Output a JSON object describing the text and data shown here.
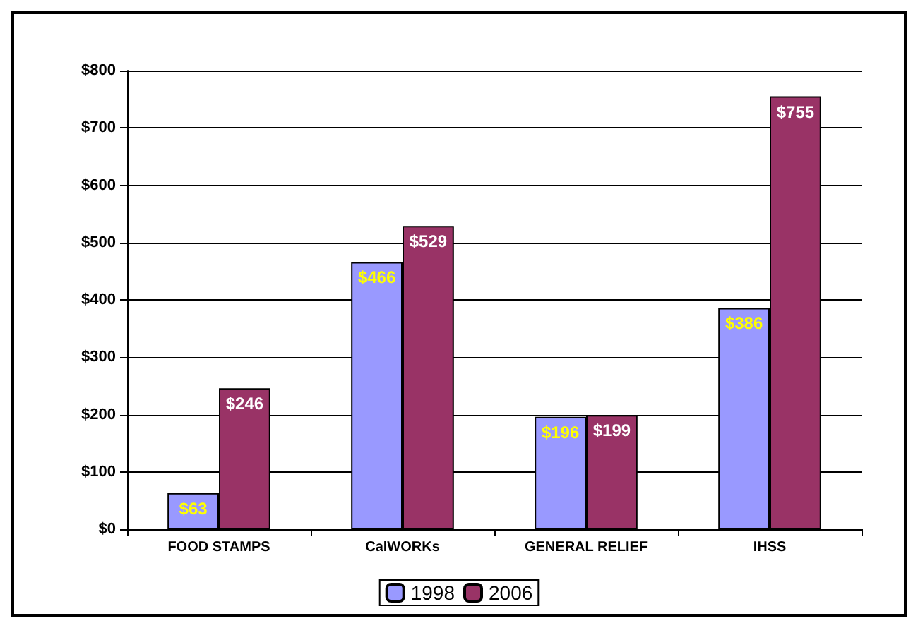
{
  "chart_data": {
    "type": "bar",
    "categories": [
      "FOOD STAMPS",
      "CalWORKs",
      "GENERAL RELIEF",
      "IHSS"
    ],
    "series": [
      {
        "name": "1998",
        "color": "#9999ff",
        "values": [
          63,
          466,
          196,
          386
        ],
        "value_labels": [
          "$63",
          "$466",
          "$196",
          "$386"
        ]
      },
      {
        "name": "2006",
        "color": "#993366",
        "values": [
          246,
          529,
          199,
          755
        ],
        "value_labels": [
          "$246",
          "$529",
          "$199",
          "$755"
        ]
      }
    ],
    "ylim": [
      0,
      800
    ],
    "yticks": [
      {
        "value": 0,
        "label": "$0"
      },
      {
        "value": 100,
        "label": "$100"
      },
      {
        "value": 200,
        "label": "$200"
      },
      {
        "value": 300,
        "label": "$300"
      },
      {
        "value": 400,
        "label": "$400"
      },
      {
        "value": 500,
        "label": "$500"
      },
      {
        "value": 600,
        "label": "$600"
      },
      {
        "value": 700,
        "label": "$700"
      },
      {
        "value": 800,
        "label": "$800"
      }
    ],
    "grid": "y",
    "legend": "bottom"
  }
}
